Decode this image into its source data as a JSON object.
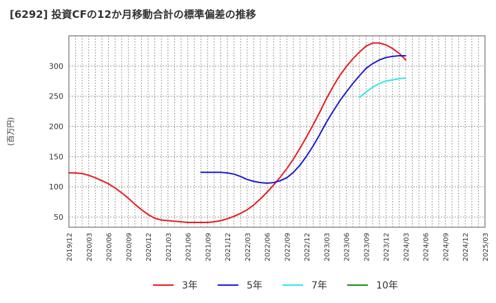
{
  "chart_data": {
    "type": "line",
    "title": "[6292]  投資CFの12か月移動合計の標準偏差の推移",
    "ylabel": "(百万円)",
    "xlabel": "",
    "ylim": [
      33,
      350
    ],
    "y_ticks": [
      50,
      100,
      150,
      200,
      250,
      300
    ],
    "x_ticks": [
      "2019/12",
      "2020/03",
      "2020/06",
      "2020/09",
      "2020/12",
      "2021/03",
      "2021/06",
      "2021/09",
      "2021/12",
      "2022/03",
      "2022/06",
      "2022/09",
      "2022/12",
      "2023/03",
      "2023/06",
      "2023/09",
      "2023/12",
      "2024/03",
      "2024/06",
      "2024/09",
      "2024/12",
      "2025/03"
    ],
    "grid": true,
    "legend_position": "bottom",
    "series": [
      {
        "name": "3年",
        "color": "#e8191e",
        "points": [
          [
            "2019/12",
            123
          ],
          [
            "2020/01",
            123
          ],
          [
            "2020/02",
            122
          ],
          [
            "2020/03",
            119
          ],
          [
            "2020/04",
            115
          ],
          [
            "2020/05",
            110
          ],
          [
            "2020/06",
            105
          ],
          [
            "2020/07",
            98
          ],
          [
            "2020/08",
            90
          ],
          [
            "2020/09",
            81
          ],
          [
            "2020/10",
            71
          ],
          [
            "2020/11",
            62
          ],
          [
            "2020/12",
            54
          ],
          [
            "2021/01",
            48
          ],
          [
            "2021/02",
            45
          ],
          [
            "2021/03",
            44
          ],
          [
            "2021/04",
            43
          ],
          [
            "2021/05",
            42
          ],
          [
            "2021/06",
            41
          ],
          [
            "2021/07",
            41
          ],
          [
            "2021/08",
            41
          ],
          [
            "2021/09",
            41
          ],
          [
            "2021/10",
            42
          ],
          [
            "2021/11",
            44
          ],
          [
            "2021/12",
            47
          ],
          [
            "2022/01",
            51
          ],
          [
            "2022/02",
            56
          ],
          [
            "2022/03",
            62
          ],
          [
            "2022/04",
            70
          ],
          [
            "2022/05",
            80
          ],
          [
            "2022/06",
            91
          ],
          [
            "2022/07",
            103
          ],
          [
            "2022/08",
            116
          ],
          [
            "2022/09",
            130
          ],
          [
            "2022/10",
            146
          ],
          [
            "2022/11",
            164
          ],
          [
            "2022/12",
            183
          ],
          [
            "2023/01",
            203
          ],
          [
            "2023/02",
            224
          ],
          [
            "2023/03",
            246
          ],
          [
            "2023/04",
            266
          ],
          [
            "2023/05",
            284
          ],
          [
            "2023/06",
            299
          ],
          [
            "2023/07",
            312
          ],
          [
            "2023/08",
            323
          ],
          [
            "2023/09",
            333
          ],
          [
            "2023/10",
            338
          ],
          [
            "2023/11",
            338
          ],
          [
            "2023/12",
            335
          ],
          [
            "2024/01",
            329
          ],
          [
            "2024/02",
            321
          ],
          [
            "2024/03",
            310
          ]
        ]
      },
      {
        "name": "5年",
        "color": "#1b1bcc",
        "points": [
          [
            "2021/08",
            124
          ],
          [
            "2021/09",
            124
          ],
          [
            "2021/10",
            124
          ],
          [
            "2021/11",
            124
          ],
          [
            "2021/12",
            123
          ],
          [
            "2022/01",
            121
          ],
          [
            "2022/02",
            117
          ],
          [
            "2022/03",
            112
          ],
          [
            "2022/04",
            109
          ],
          [
            "2022/05",
            107
          ],
          [
            "2022/06",
            106
          ],
          [
            "2022/07",
            107
          ],
          [
            "2022/08",
            110
          ],
          [
            "2022/09",
            115
          ],
          [
            "2022/10",
            124
          ],
          [
            "2022/11",
            136
          ],
          [
            "2022/12",
            151
          ],
          [
            "2023/01",
            168
          ],
          [
            "2023/02",
            187
          ],
          [
            "2023/03",
            207
          ],
          [
            "2023/04",
            225
          ],
          [
            "2023/05",
            242
          ],
          [
            "2023/06",
            257
          ],
          [
            "2023/07",
            271
          ],
          [
            "2023/08",
            284
          ],
          [
            "2023/09",
            296
          ],
          [
            "2023/10",
            304
          ],
          [
            "2023/11",
            310
          ],
          [
            "2023/12",
            314
          ],
          [
            "2024/01",
            316
          ],
          [
            "2024/02",
            317
          ],
          [
            "2024/03",
            317
          ]
        ]
      },
      {
        "name": "7年",
        "color": "#33e5e5",
        "points": [
          [
            "2023/08",
            248
          ],
          [
            "2023/09",
            257
          ],
          [
            "2023/10",
            265
          ],
          [
            "2023/11",
            271
          ],
          [
            "2023/12",
            275
          ],
          [
            "2024/01",
            277
          ],
          [
            "2024/02",
            279
          ],
          [
            "2024/03",
            280
          ]
        ]
      },
      {
        "name": "10年",
        "color": "#1a8a1a",
        "points": []
      }
    ]
  }
}
